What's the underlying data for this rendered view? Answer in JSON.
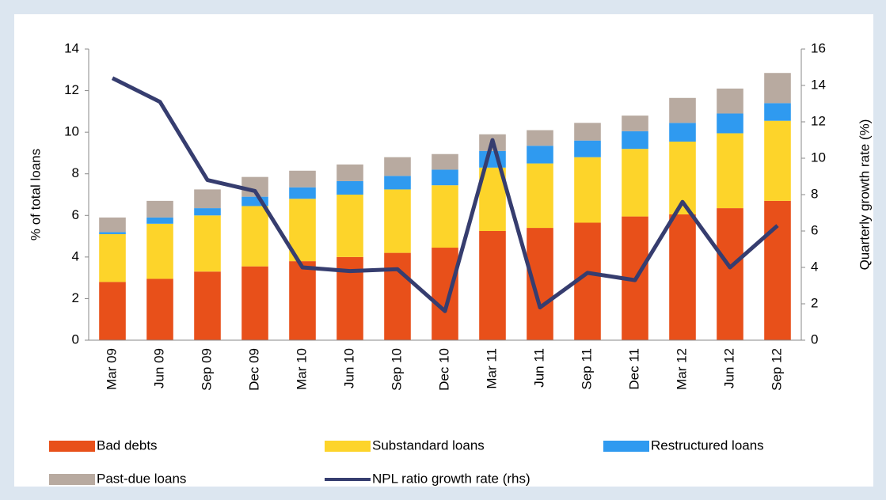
{
  "chart_data": {
    "type": "bar+line",
    "y_label": "% of total loans",
    "y2_label": "Quarterly growth rate (%)",
    "categories": [
      "Mar 09",
      "Jun 09",
      "Sep 09",
      "Dec 09",
      "Mar 10",
      "Jun 10",
      "Sep 10",
      "Dec 10",
      "Mar 11",
      "Jun 11",
      "Sep 11",
      "Dec 11",
      "Mar 12",
      "Jun 12",
      "Sep 12"
    ],
    "series": [
      {
        "name": "Bad debts",
        "type": "bar",
        "color": "#e8501a",
        "values": [
          2.8,
          2.95,
          3.3,
          3.55,
          3.8,
          4.0,
          4.2,
          4.45,
          5.25,
          5.4,
          5.65,
          5.95,
          6.05,
          6.35,
          6.7
        ]
      },
      {
        "name": "Substandard loans",
        "type": "bar",
        "color": "#fdd42a",
        "values": [
          2.3,
          2.65,
          2.7,
          2.9,
          3.0,
          3.0,
          3.05,
          3.0,
          3.05,
          3.1,
          3.15,
          3.25,
          3.5,
          3.6,
          3.85
        ]
      },
      {
        "name": "Restructured loans",
        "type": "bar",
        "color": "#2f9af0",
        "values": [
          0.1,
          0.3,
          0.35,
          0.45,
          0.55,
          0.65,
          0.65,
          0.75,
          0.8,
          0.85,
          0.8,
          0.85,
          0.9,
          0.95,
          0.85
        ]
      },
      {
        "name": "Past-due loans",
        "type": "bar",
        "color": "#b8aaa0",
        "values": [
          0.7,
          0.8,
          0.9,
          0.95,
          0.8,
          0.8,
          0.9,
          0.75,
          0.8,
          0.75,
          0.85,
          0.75,
          1.2,
          1.2,
          1.45
        ]
      },
      {
        "name": "NPL ratio growth rate (rhs)",
        "type": "line",
        "axis": "y2",
        "color": "#363d6f",
        "values": [
          14.4,
          13.1,
          8.8,
          8.2,
          4.0,
          3.8,
          3.9,
          1.6,
          11.0,
          1.8,
          3.7,
          3.3,
          7.6,
          4.0,
          6.3
        ]
      }
    ],
    "ylim": [
      0,
      14
    ],
    "yticks": [
      0,
      2,
      4,
      6,
      8,
      10,
      12,
      14
    ],
    "y2lim": [
      0,
      16
    ],
    "y2ticks": [
      0,
      2,
      4,
      6,
      8,
      10,
      12,
      14,
      16
    ],
    "stacked": true
  }
}
